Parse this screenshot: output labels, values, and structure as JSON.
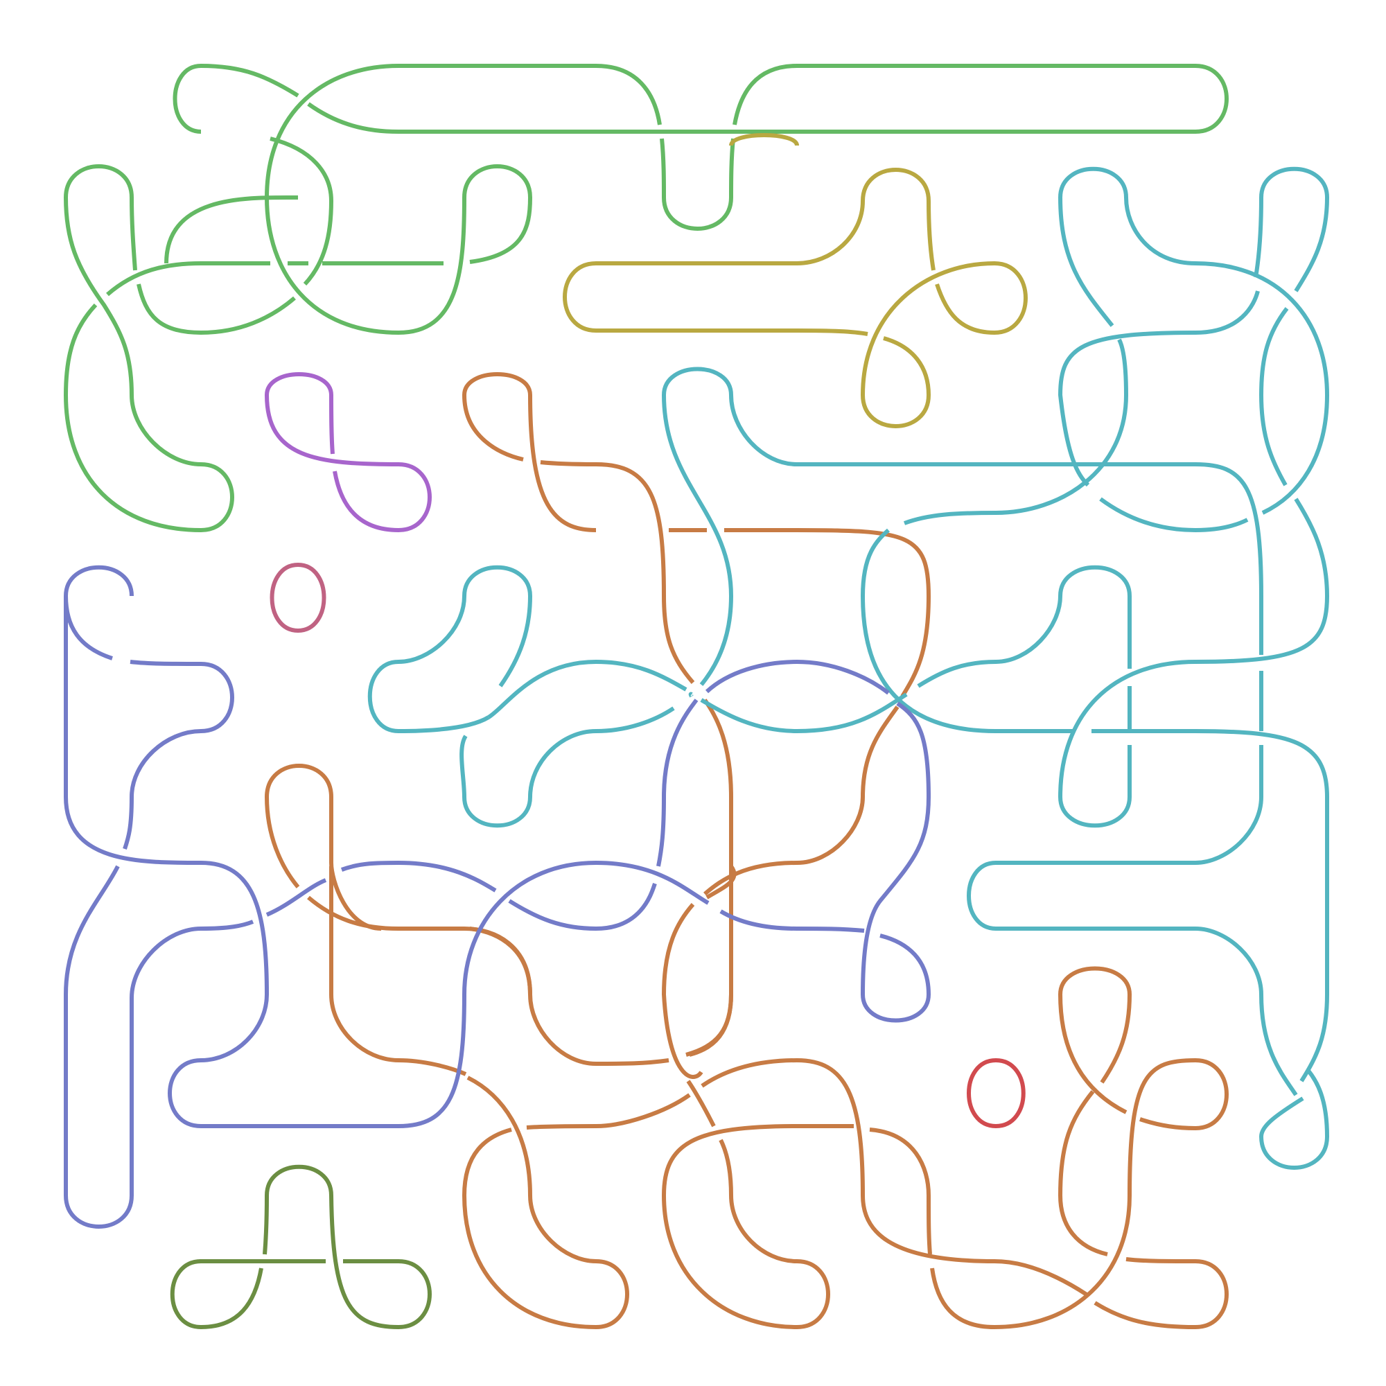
{
  "diagram": {
    "background": "#ffffff",
    "strands": [
      {
        "id": "green",
        "color": "#64b964"
      },
      {
        "id": "olive",
        "color": "#b9a841"
      },
      {
        "id": "purple",
        "color": "#a765cc"
      },
      {
        "id": "rose",
        "color": "#c06282"
      },
      {
        "id": "red",
        "color": "#d14a4e"
      },
      {
        "id": "dark-green",
        "color": "#6b8e42"
      },
      {
        "id": "orange",
        "color": "#c77b44"
      },
      {
        "id": "teal",
        "color": "#53b5c0"
      },
      {
        "id": "blue-violet",
        "color": "#737bc8"
      }
    ]
  }
}
